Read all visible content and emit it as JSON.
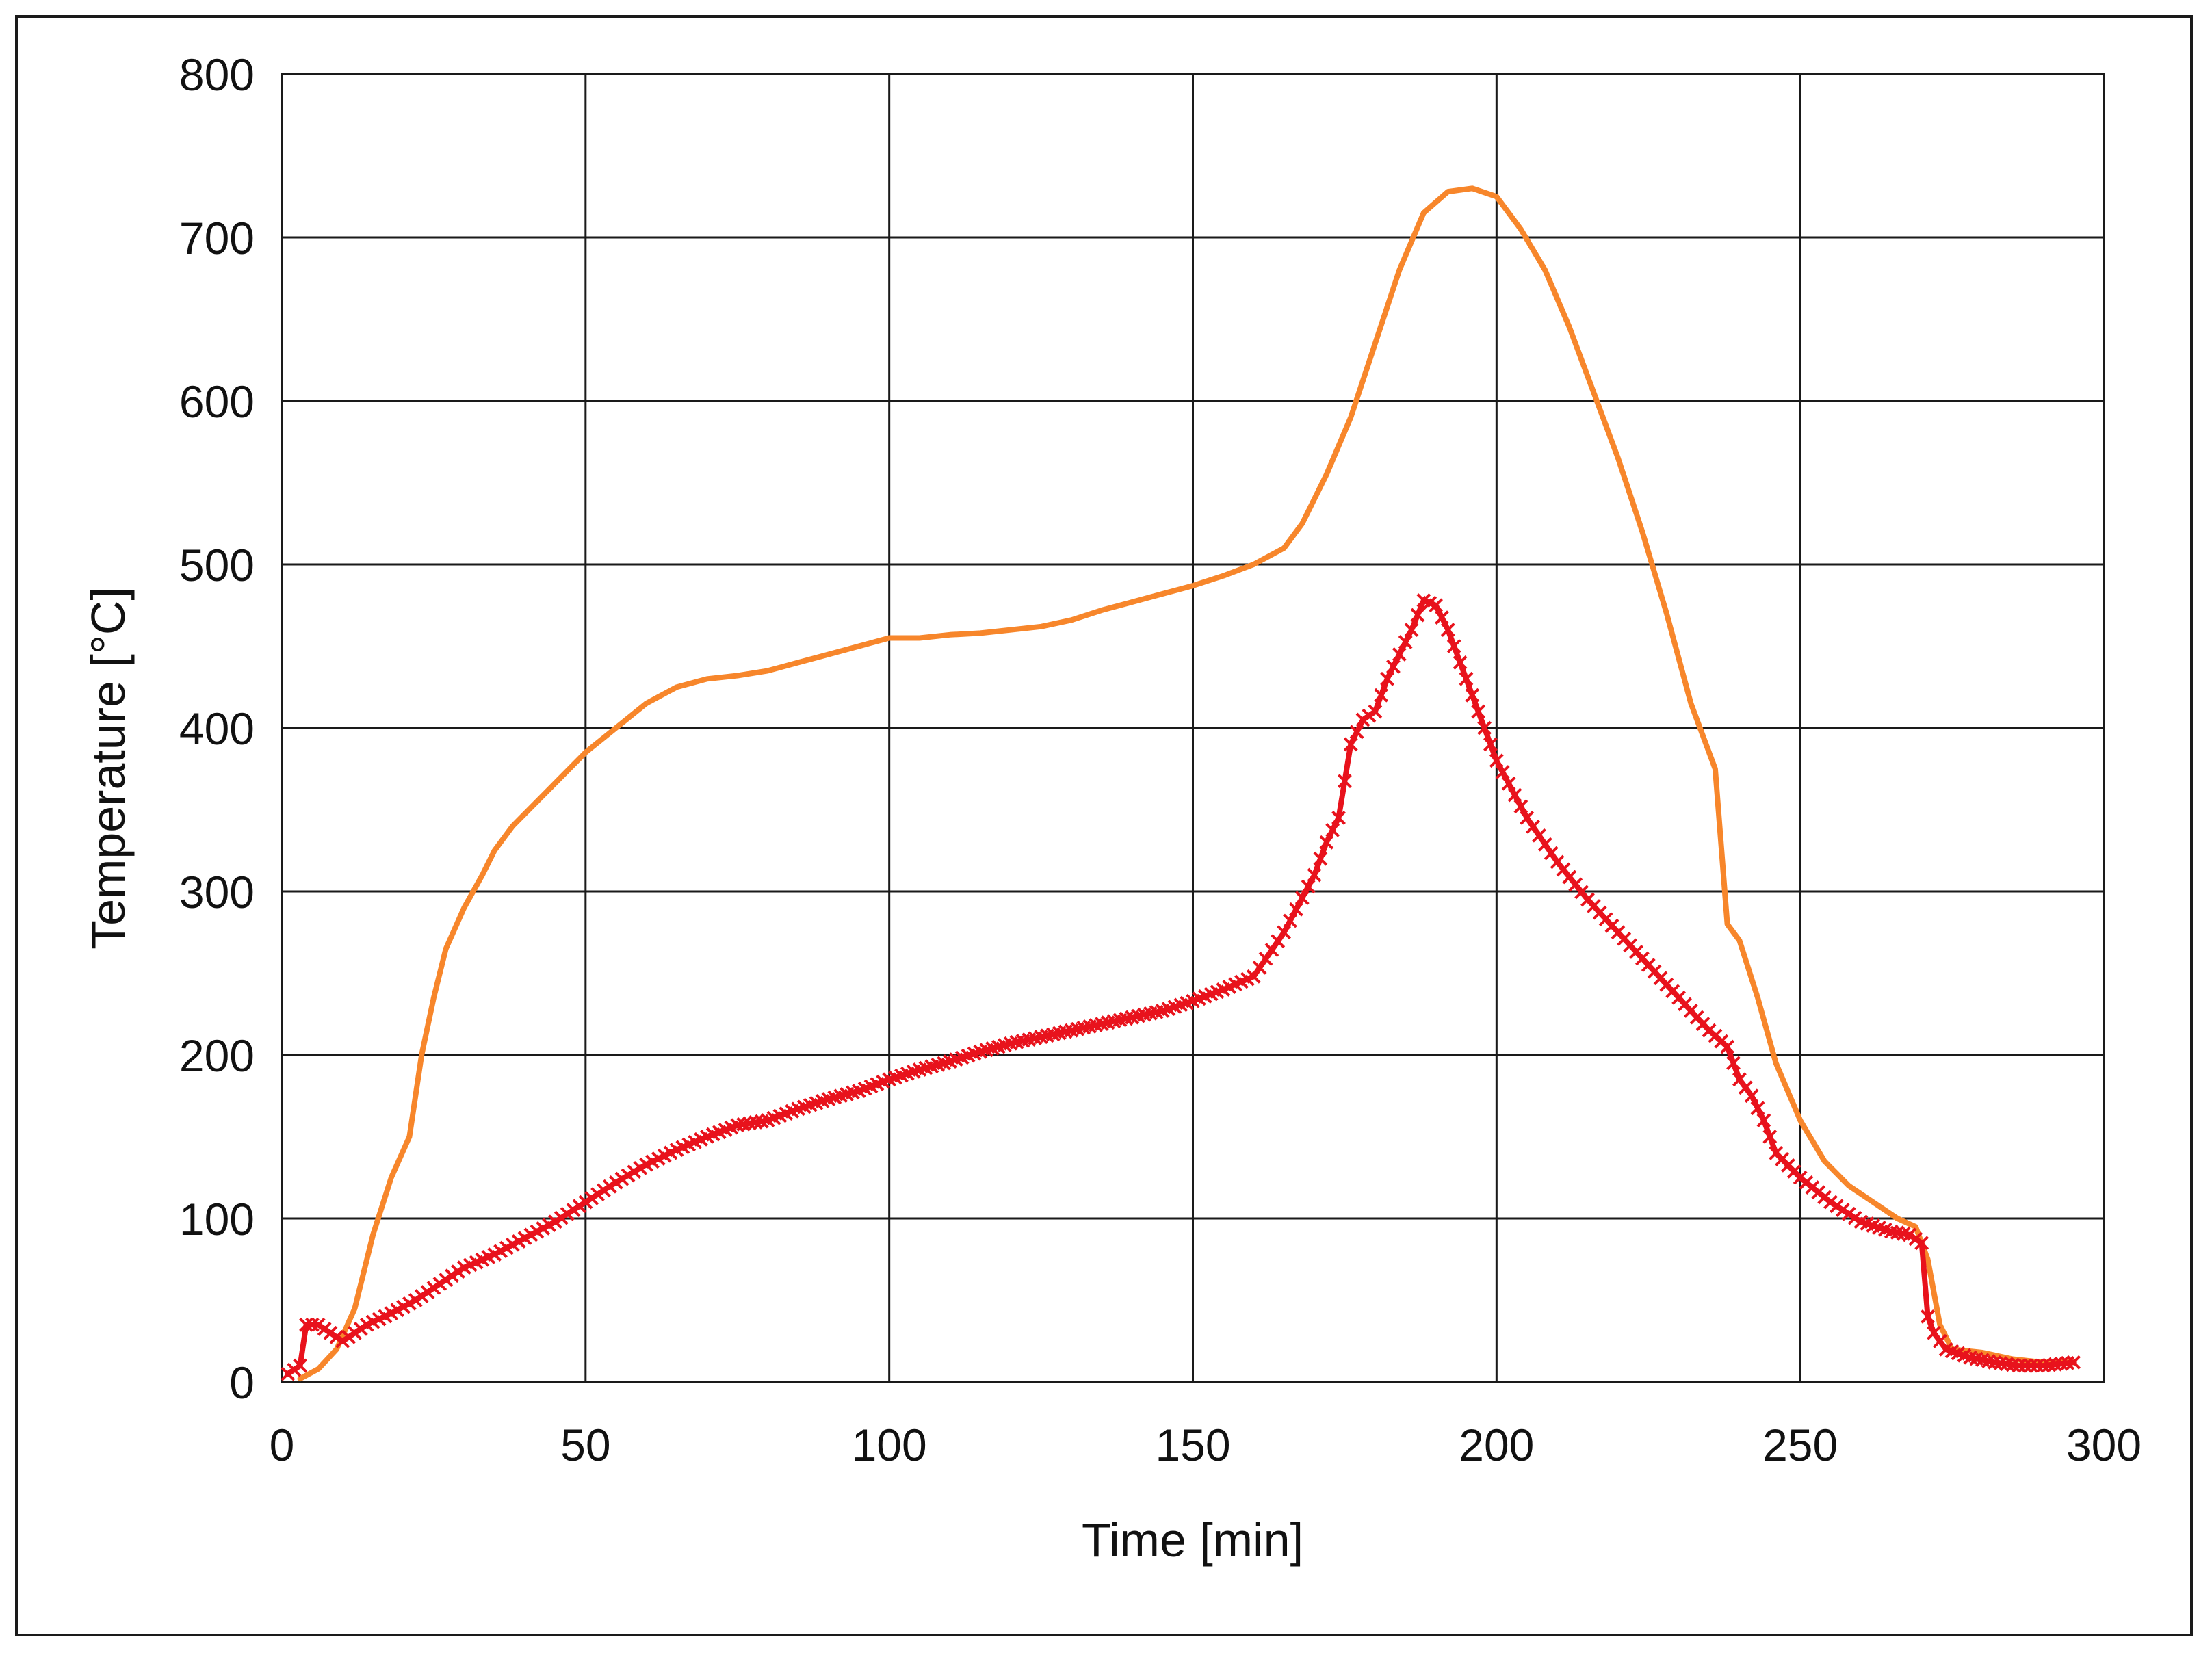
{
  "chart_data": {
    "type": "line",
    "title": "",
    "xlabel": "Time [min]",
    "ylabel": "Temperature [°C]",
    "xlim": [
      0,
      300
    ],
    "ylim": [
      0,
      800
    ],
    "xticks": [
      0,
      50,
      100,
      150,
      200,
      250,
      300
    ],
    "yticks": [
      0,
      100,
      200,
      300,
      400,
      500,
      600,
      700,
      800
    ],
    "xtick_labels": [
      "0",
      "50",
      "100",
      "150",
      "200",
      "250",
      "300"
    ],
    "ytick_labels": [
      "0",
      "100",
      "200",
      "300",
      "400",
      "500",
      "600",
      "700",
      "800"
    ],
    "grid": true,
    "legend": "none",
    "series": [
      {
        "name": "orange-curve",
        "color": "#f7862b",
        "marker": "none",
        "x": [
          3,
          6,
          9,
          12,
          15,
          18,
          21,
          23,
          25,
          27,
          30,
          33,
          35,
          38,
          42,
          46,
          50,
          55,
          60,
          65,
          70,
          75,
          80,
          85,
          90,
          95,
          100,
          105,
          110,
          115,
          120,
          125,
          130,
          135,
          140,
          145,
          150,
          155,
          160,
          165,
          168,
          172,
          176,
          180,
          184,
          188,
          192,
          196,
          200,
          204,
          208,
          212,
          216,
          220,
          224,
          228,
          232,
          236,
          238,
          240,
          243,
          246,
          250,
          254,
          258,
          262,
          266,
          269,
          271,
          273,
          275,
          280,
          285,
          290,
          295
        ],
        "y": [
          2,
          8,
          20,
          45,
          90,
          125,
          150,
          200,
          235,
          265,
          290,
          310,
          325,
          340,
          355,
          370,
          385,
          400,
          415,
          425,
          430,
          432,
          435,
          440,
          445,
          450,
          455,
          455,
          457,
          458,
          460,
          462,
          466,
          472,
          477,
          482,
          487,
          493,
          500,
          510,
          525,
          555,
          590,
          635,
          680,
          715,
          728,
          730,
          725,
          705,
          680,
          645,
          605,
          565,
          520,
          470,
          415,
          375,
          280,
          270,
          235,
          195,
          160,
          135,
          120,
          110,
          100,
          95,
          75,
          35,
          20,
          18,
          14,
          12,
          12
        ]
      },
      {
        "name": "red-curve-with-markers",
        "color": "#e8121c",
        "marker": "x",
        "x": [
          1,
          3,
          4,
          6,
          8,
          10,
          14,
          18,
          22,
          26,
          30,
          35,
          40,
          45,
          50,
          55,
          60,
          65,
          70,
          75,
          80,
          85,
          90,
          95,
          100,
          105,
          110,
          115,
          120,
          125,
          130,
          135,
          140,
          145,
          150,
          155,
          160,
          165,
          170,
          172,
          174,
          176,
          178,
          180,
          182,
          184,
          186,
          188,
          190,
          192,
          194,
          196,
          198,
          200,
          205,
          210,
          215,
          220,
          225,
          230,
          235,
          238,
          240,
          242,
          244,
          246,
          250,
          255,
          260,
          265,
          268,
          270,
          271,
          272,
          274,
          278,
          282,
          286,
          290,
          295
        ],
        "y": [
          5,
          10,
          35,
          35,
          30,
          25,
          35,
          42,
          50,
          60,
          70,
          78,
          88,
          98,
          110,
          122,
          133,
          142,
          150,
          157,
          160,
          167,
          173,
          178,
          185,
          191,
          196,
          202,
          207,
          211,
          215,
          219,
          223,
          227,
          233,
          240,
          248,
          275,
          310,
          330,
          345,
          390,
          405,
          410,
          430,
          445,
          460,
          478,
          475,
          460,
          440,
          420,
          400,
          380,
          345,
          318,
          295,
          275,
          255,
          235,
          215,
          205,
          185,
          175,
          160,
          140,
          125,
          110,
          98,
          92,
          90,
          85,
          40,
          30,
          20,
          15,
          12,
          10,
          10,
          12
        ]
      }
    ]
  }
}
